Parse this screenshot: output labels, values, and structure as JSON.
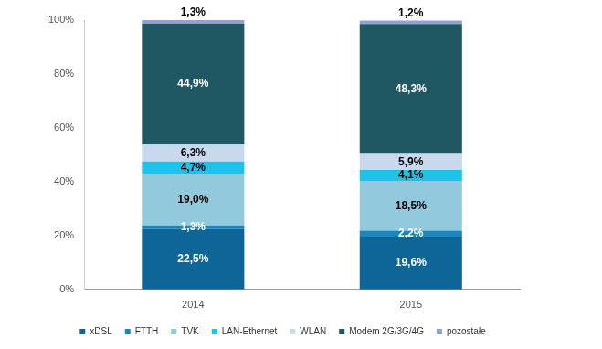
{
  "chart_data": {
    "type": "bar",
    "stacked": true,
    "data_labels": true,
    "grid": false,
    "legend": "bottom",
    "categories": [
      "2014",
      "2015"
    ],
    "ylim": [
      0,
      100
    ],
    "yticks": [
      {
        "value": 0,
        "label": "0%"
      },
      {
        "value": 20,
        "label": "20%"
      },
      {
        "value": 40,
        "label": "40%"
      },
      {
        "value": 60,
        "label": "60%"
      },
      {
        "value": 80,
        "label": "80%"
      },
      {
        "value": 100,
        "label": "100%"
      }
    ],
    "series": [
      {
        "name": "xDSL",
        "color": "#0d6598",
        "values": [
          22.5,
          19.6
        ],
        "value_labels": [
          "22,5%",
          "19,6%"
        ]
      },
      {
        "name": "FTTH",
        "color": "#1a86bd",
        "values": [
          1.3,
          2.2
        ],
        "value_labels": [
          "1,3%",
          "2,2%"
        ]
      },
      {
        "name": "TVK",
        "color": "#93c9dc",
        "values": [
          19.0,
          18.5
        ],
        "value_labels": [
          "19,0%",
          "18,5%"
        ]
      },
      {
        "name": "LAN-Ethernet",
        "color": "#1ec3ec",
        "values": [
          4.7,
          4.1
        ],
        "value_labels": [
          "4,7%",
          "4,1%"
        ]
      },
      {
        "name": "WLAN",
        "color": "#c8d9ee",
        "values": [
          6.3,
          5.9
        ],
        "value_labels": [
          "6,3%",
          "5,9%"
        ]
      },
      {
        "name": "Modem 2G/3G/4G",
        "color": "#1f5862",
        "values": [
          44.9,
          48.3
        ],
        "value_labels": [
          "44,9%",
          "48,3%"
        ]
      },
      {
        "name": "pozostałe",
        "color": "#8fa2d2",
        "values": [
          1.3,
          1.2
        ],
        "value_labels": [
          "1,3%",
          "1,2%"
        ]
      }
    ]
  }
}
